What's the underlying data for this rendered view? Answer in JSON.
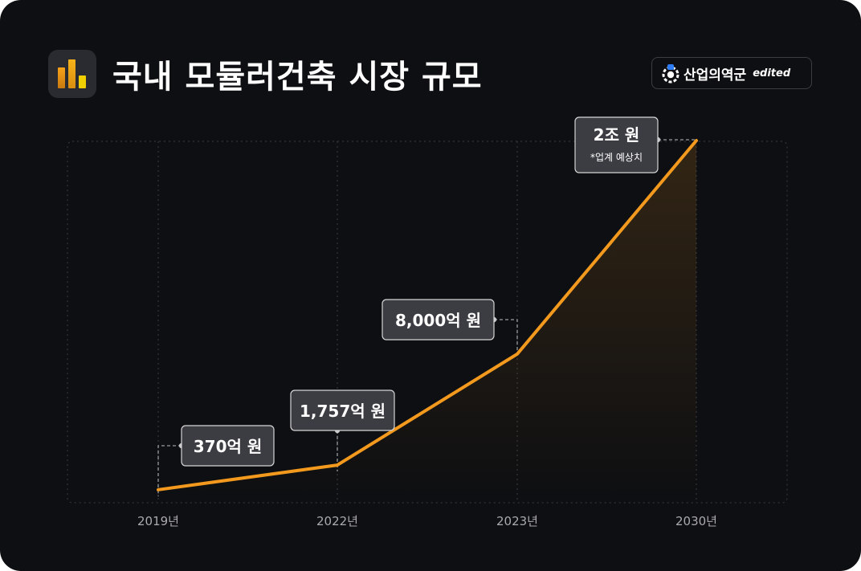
{
  "header": {
    "title": "국내 모듈러건축 시장 규모",
    "title_icon": "bar-chart-icon",
    "brand_name": "산업의역군",
    "brand_tag": "edited",
    "brand_logo": "gear-worker-icon"
  },
  "colors": {
    "background": "#0e0f12",
    "line": "#f39a1e",
    "label_box": "#3c3d42",
    "label_border": "#d6d6d6",
    "axis_text": "#a9a9ae",
    "icon_gradient_top": "#f6a21a",
    "icon_gradient_bottom": "#e6c200"
  },
  "chart_data": {
    "type": "line",
    "title": "국내 모듈러건축 시장 규모",
    "categories": [
      "2019년",
      "2022년",
      "2023년",
      "2030년"
    ],
    "series": [
      {
        "values": [
          370,
          1757,
          8000,
          20000
        ],
        "labels": [
          "370억 원",
          "1,757억 원",
          "8,000억 원",
          "2조 원"
        ]
      }
    ],
    "annotations": [
      {
        "category": "2030년",
        "text": "*업계 예상치"
      }
    ],
    "xlabel": "",
    "ylabel": "",
    "ylim": [
      0,
      20000
    ],
    "grid": true,
    "area_fill": true
  }
}
